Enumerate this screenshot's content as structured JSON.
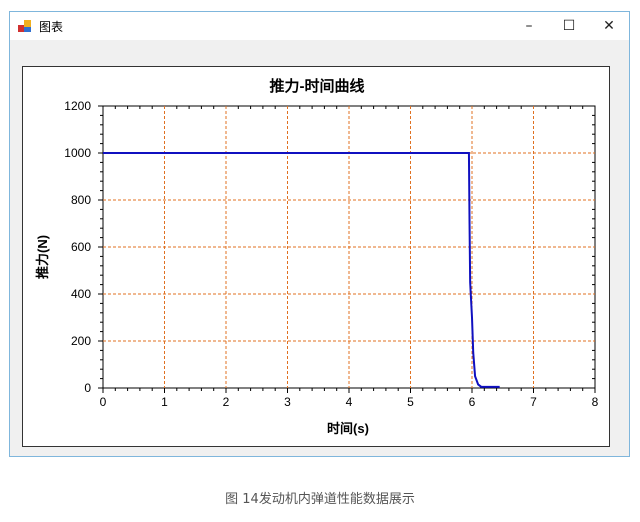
{
  "window": {
    "title": "图表",
    "icon": "chart-app-icon",
    "controls": [
      "minimize",
      "maximize",
      "close"
    ],
    "minimize_glyph": "–",
    "maximize_glyph": "☐",
    "close_glyph": "✕"
  },
  "caption": "图 14发动机内弹道性能数据展示",
  "chart_data": {
    "type": "line",
    "title": "推力-时间曲线",
    "xlabel": "时间(s)",
    "ylabel": "推力(N)",
    "xlim": [
      0,
      8
    ],
    "ylim": [
      0,
      1200
    ],
    "xticks": [
      0,
      1,
      2,
      3,
      4,
      5,
      6,
      7,
      8
    ],
    "yticks": [
      0,
      200,
      400,
      600,
      800,
      1000,
      1200
    ],
    "grid": true,
    "grid_color": "#e07020",
    "line_color": "#1010c0",
    "x": [
      0,
      5.95,
      5.96,
      5.97,
      5.99,
      6.0,
      6.02,
      6.05,
      6.1,
      6.15,
      6.3,
      6.45
    ],
    "y": [
      1000,
      1000,
      700,
      450,
      350,
      300,
      150,
      50,
      15,
      5,
      5,
      5
    ]
  }
}
